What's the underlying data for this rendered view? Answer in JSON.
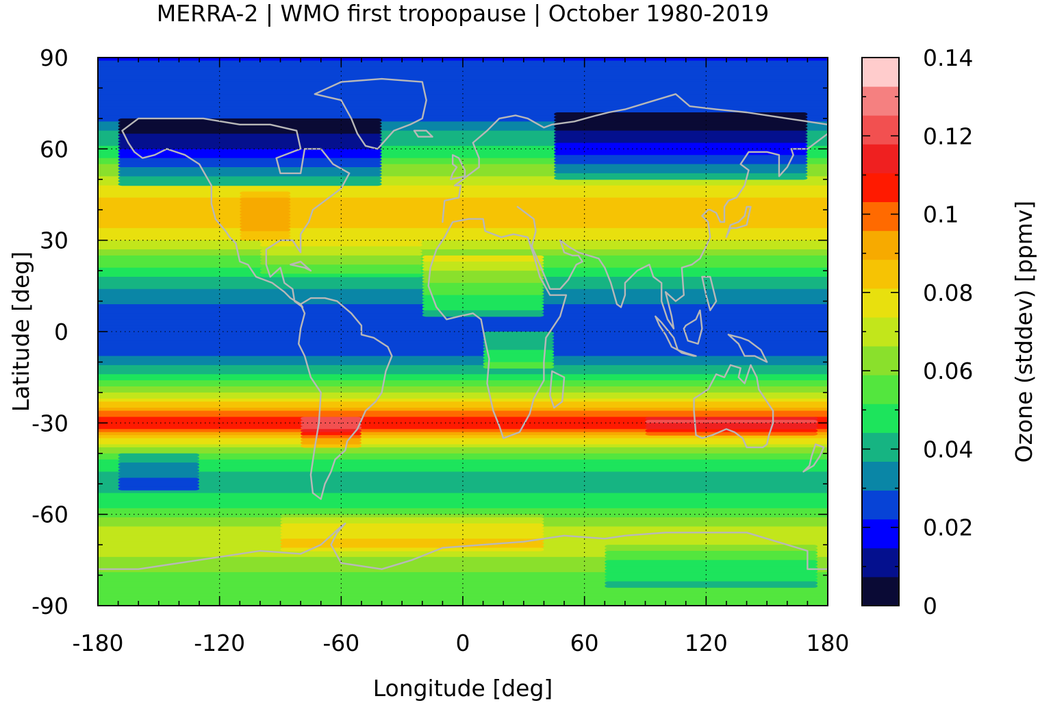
{
  "chart_data": {
    "type": "heatmap",
    "title": "MERRA-2 | WMO first tropopause | October 1980-2019",
    "xlabel": "Longitude [deg]",
    "ylabel": "Latitude [deg]",
    "colorbar_label": "Ozone (stddev) [ppmv]",
    "xlim": [
      -180,
      180
    ],
    "ylim": [
      -90,
      90
    ],
    "xticks": [
      -180,
      -120,
      -60,
      0,
      60,
      120,
      180
    ],
    "xtick_labels": [
      "-180",
      "-120",
      "-60",
      "0",
      "60",
      "120",
      "180"
    ],
    "yticks": [
      90,
      60,
      30,
      0,
      -30,
      -60,
      -90
    ],
    "ytick_labels": [
      "90",
      "60",
      "30",
      "0",
      "-30",
      "-60",
      "-90"
    ],
    "colorbar_range": [
      0,
      0.14
    ],
    "colorbar_ticks": [
      0,
      0.02,
      0.04,
      0.06,
      0.08,
      0.1,
      0.12,
      0.14
    ],
    "colorbar_tick_labels": [
      "0",
      "0.02",
      "0.04",
      "0.06",
      "0.08",
      "0.1",
      "0.12",
      "0.14"
    ],
    "colorbar_colors": [
      "#0a0a35",
      "#04108e",
      "#0000ff",
      "#0743d6",
      "#0a86a6",
      "#16b482",
      "#1de45c",
      "#53e63e",
      "#8ae02c",
      "#c2e61b",
      "#e8e00e",
      "#f6c304",
      "#f7aa00",
      "#ff6a00",
      "#ff1a00",
      "#ef2020",
      "#f25050",
      "#f58080",
      "#ffcccc"
    ],
    "grid": "dotted",
    "latitude_profile": {
      "lat": [
        90,
        80,
        70,
        65,
        60,
        55,
        50,
        45,
        40,
        35,
        30,
        25,
        20,
        15,
        10,
        5,
        0,
        -5,
        -10,
        -15,
        -20,
        -25,
        -28,
        -30,
        -32,
        -35,
        -40,
        -45,
        -50,
        -55,
        -60,
        -65,
        -70,
        -75,
        -80,
        -85,
        -90
      ],
      "stddev": [
        0.022,
        0.023,
        0.027,
        0.038,
        0.045,
        0.058,
        0.069,
        0.08,
        0.084,
        0.083,
        0.075,
        0.06,
        0.048,
        0.039,
        0.031,
        0.024,
        0.023,
        0.024,
        0.034,
        0.048,
        0.064,
        0.09,
        0.105,
        0.112,
        0.103,
        0.082,
        0.058,
        0.045,
        0.042,
        0.046,
        0.055,
        0.07,
        0.074,
        0.064,
        0.058,
        0.054,
        0.056
      ]
    },
    "regional_anomalies": [
      {
        "lon": [
          -170,
          -40
        ],
        "lat": [
          48,
          70
        ],
        "delta": -0.03
      },
      {
        "lon": [
          45,
          170
        ],
        "lat": [
          50,
          72
        ],
        "delta": -0.028
      },
      {
        "lon": [
          -110,
          -85
        ],
        "lat": [
          30,
          46
        ],
        "delta": 0.008
      },
      {
        "lon": [
          -20,
          40
        ],
        "lat": [
          5,
          25
        ],
        "delta": 0.018
      },
      {
        "lon": [
          -100,
          -20
        ],
        "lat": [
          18,
          30
        ],
        "delta": 0.006
      },
      {
        "lon": [
          -80,
          -50
        ],
        "lat": [
          -38,
          -28
        ],
        "delta": 0.014
      },
      {
        "lon": [
          90,
          175
        ],
        "lat": [
          -34,
          -28
        ],
        "delta": 0.008
      },
      {
        "lon": [
          -170,
          -130
        ],
        "lat": [
          -52,
          -40
        ],
        "delta": -0.014
      },
      {
        "lon": [
          -90,
          40
        ],
        "lat": [
          -72,
          -60
        ],
        "delta": 0.009
      },
      {
        "lon": [
          70,
          175
        ],
        "lat": [
          -84,
          -70
        ],
        "delta": -0.012
      },
      {
        "lon": [
          10,
          45
        ],
        "lat": [
          -12,
          0
        ],
        "delta": 0.018
      }
    ]
  }
}
